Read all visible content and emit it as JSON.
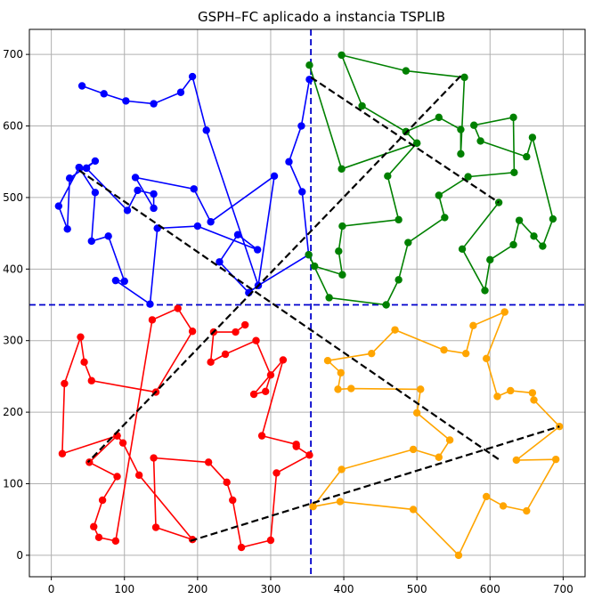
{
  "chart_data": {
    "type": "line",
    "title": "GSPH–FC aplicado a instancia TSPLIB",
    "xlabel": "",
    "ylabel": "",
    "xlim": [
      -30,
      730
    ],
    "ylim": [
      -30,
      735
    ],
    "xticks": [
      0,
      100,
      200,
      300,
      400,
      500,
      600,
      700
    ],
    "yticks": [
      0,
      100,
      200,
      300,
      400,
      500,
      600,
      700
    ],
    "grid": true,
    "dividers": {
      "x": 355,
      "y": 350,
      "color": "#0000cc"
    },
    "connector_color": "#000000",
    "series": [
      {
        "color": "#0000ff",
        "points": [
          [
            353,
            665
          ],
          [
            342,
            600
          ],
          [
            325,
            550
          ],
          [
            343,
            508
          ],
          [
            352,
            420
          ],
          [
            283,
            377
          ],
          [
            270,
            367
          ],
          [
            230,
            410
          ],
          [
            255,
            448
          ],
          [
            282,
            427
          ],
          [
            200,
            460
          ],
          [
            145,
            457
          ],
          [
            135,
            351
          ],
          [
            88,
            384
          ],
          [
            100,
            383
          ],
          [
            78,
            446
          ],
          [
            55,
            439
          ],
          [
            60,
            507
          ],
          [
            38,
            542
          ],
          [
            48,
            541
          ],
          [
            60,
            551
          ],
          [
            25,
            527
          ],
          [
            22,
            456
          ],
          [
            10,
            488
          ],
          [
            38,
            542
          ],
          [
            48,
            541
          ],
          [
            104,
            482
          ],
          [
            118,
            510
          ],
          [
            140,
            505
          ],
          [
            140,
            485
          ],
          [
            115,
            528
          ],
          [
            195,
            512
          ],
          [
            218,
            466
          ],
          [
            305,
            530
          ],
          [
            283,
            377
          ],
          [
            212,
            594
          ],
          [
            193,
            669
          ],
          [
            177,
            647
          ],
          [
            140,
            631
          ],
          [
            102,
            635
          ],
          [
            72,
            645
          ],
          [
            42,
            656
          ]
        ]
      },
      {
        "color": "#008000",
        "points": [
          [
            353,
            685
          ],
          [
            397,
            540
          ],
          [
            500,
            576
          ],
          [
            485,
            592
          ],
          [
            530,
            612
          ],
          [
            560,
            595
          ],
          [
            560,
            561
          ],
          [
            565,
            668
          ],
          [
            485,
            677
          ],
          [
            397,
            699
          ],
          [
            425,
            628
          ],
          [
            485,
            592
          ],
          [
            500,
            576
          ],
          [
            460,
            530
          ],
          [
            475,
            469
          ],
          [
            398,
            460
          ],
          [
            393,
            425
          ],
          [
            398,
            392
          ],
          [
            360,
            404
          ],
          [
            352,
            420
          ],
          [
            380,
            360
          ],
          [
            458,
            350
          ],
          [
            475,
            385
          ],
          [
            488,
            437
          ],
          [
            538,
            472
          ],
          [
            530,
            503
          ],
          [
            570,
            529
          ],
          [
            633,
            535
          ],
          [
            632,
            612
          ],
          [
            578,
            601
          ],
          [
            587,
            579
          ],
          [
            650,
            557
          ],
          [
            658,
            584
          ],
          [
            686,
            470
          ],
          [
            672,
            432
          ],
          [
            660,
            446
          ],
          [
            640,
            468
          ],
          [
            632,
            434
          ],
          [
            600,
            413
          ],
          [
            593,
            370
          ],
          [
            562,
            428
          ],
          [
            612,
            493
          ]
        ]
      },
      {
        "color": "#ff0000",
        "points": [
          [
            265,
            322
          ],
          [
            252,
            312
          ],
          [
            222,
            312
          ],
          [
            218,
            270
          ],
          [
            238,
            281
          ],
          [
            280,
            300
          ],
          [
            300,
            252
          ],
          [
            293,
            229
          ],
          [
            277,
            225
          ],
          [
            317,
            273
          ],
          [
            288,
            167
          ],
          [
            335,
            155
          ],
          [
            335,
            152
          ],
          [
            353,
            140
          ],
          [
            308,
            115
          ],
          [
            300,
            21
          ],
          [
            260,
            11
          ],
          [
            248,
            77
          ],
          [
            240,
            102
          ],
          [
            215,
            130
          ],
          [
            140,
            136
          ],
          [
            143,
            39
          ],
          [
            193,
            22
          ],
          [
            120,
            112
          ],
          [
            98,
            157
          ],
          [
            90,
            167
          ],
          [
            52,
            130
          ],
          [
            90,
            110
          ],
          [
            70,
            77
          ],
          [
            58,
            40
          ],
          [
            65,
            25
          ],
          [
            88,
            20
          ],
          [
            138,
            329
          ],
          [
            173,
            345
          ],
          [
            193,
            313
          ],
          [
            143,
            228
          ],
          [
            55,
            244
          ],
          [
            45,
            270
          ],
          [
            40,
            305
          ],
          [
            18,
            240
          ],
          [
            15,
            142
          ],
          [
            90,
            167
          ]
        ]
      },
      {
        "color": "#ffa500",
        "points": [
          [
            620,
            340
          ],
          [
            577,
            321
          ],
          [
            567,
            282
          ],
          [
            537,
            287
          ],
          [
            470,
            315
          ],
          [
            438,
            282
          ],
          [
            378,
            272
          ],
          [
            396,
            255
          ],
          [
            392,
            232
          ],
          [
            410,
            233
          ],
          [
            505,
            232
          ],
          [
            500,
            199
          ],
          [
            545,
            161
          ],
          [
            530,
            137
          ],
          [
            495,
            148
          ],
          [
            397,
            120
          ],
          [
            358,
            68
          ],
          [
            395,
            75
          ],
          [
            495,
            64
          ],
          [
            557,
            0
          ],
          [
            595,
            82
          ],
          [
            618,
            69
          ],
          [
            650,
            62
          ],
          [
            690,
            134
          ],
          [
            636,
            133
          ],
          [
            695,
            180
          ],
          [
            660,
            217
          ],
          [
            658,
            227
          ],
          [
            628,
            230
          ],
          [
            610,
            222
          ],
          [
            595,
            275
          ],
          [
            620,
            340
          ]
        ]
      }
    ],
    "connectors": [
      [
        [
          38,
          538
        ],
        [
          612,
          134
        ]
      ],
      [
        [
          560,
          670
        ],
        [
          50,
          130
        ]
      ],
      [
        [
          190,
          20
        ],
        [
          695,
          180
        ]
      ],
      [
        [
          355,
          668
        ],
        [
          612,
          493
        ]
      ]
    ]
  }
}
